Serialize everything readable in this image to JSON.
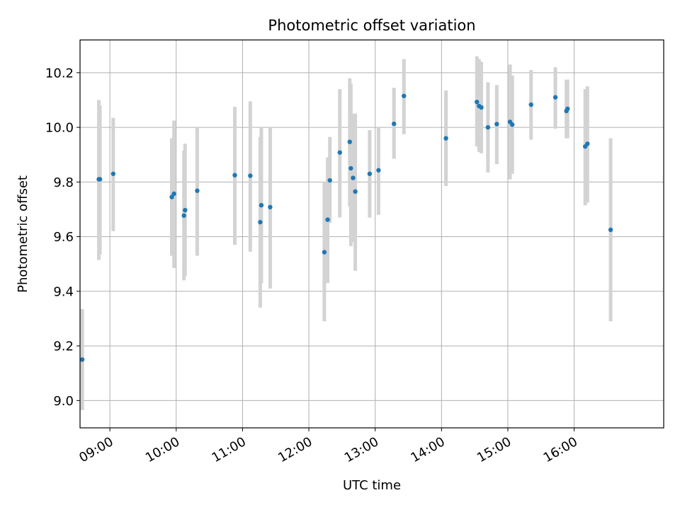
{
  "chart_data": {
    "type": "scatter",
    "title": "Photometric offset variation",
    "xlabel": "UTC time",
    "ylabel": "Photometric offset",
    "x_unit": "UTC time (HH:MM)",
    "xlim": [
      "08:33",
      "17:21"
    ],
    "ylim": [
      8.9,
      10.32
    ],
    "x_ticks": [
      "09:00",
      "10:00",
      "11:00",
      "12:00",
      "13:00",
      "14:00",
      "15:00",
      "16:00"
    ],
    "y_ticks": [
      9.0,
      9.2,
      9.4,
      9.6,
      9.8,
      10.0,
      10.2
    ],
    "y_tick_labels": [
      "9.0",
      "9.2",
      "9.4",
      "9.6",
      "9.8",
      "10.0",
      "10.2"
    ],
    "grid": true,
    "colors": {
      "point": "#1f77b4",
      "errorbar": "#d3d3d3",
      "grid": "#b0b0b0"
    },
    "series": [
      {
        "points": [
          {
            "x": "08:35",
            "y": 9.15,
            "lo": 8.965,
            "hi": 9.335
          },
          {
            "x": "08:50",
            "y": 9.81,
            "lo": 9.515,
            "hi": 10.1
          },
          {
            "x": "08:51",
            "y": 9.81,
            "lo": 9.535,
            "hi": 10.08
          },
          {
            "x": "09:03",
            "y": 9.83,
            "lo": 9.62,
            "hi": 10.035
          },
          {
            "x": "09:56",
            "y": 9.745,
            "lo": 9.53,
            "hi": 9.96
          },
          {
            "x": "09:58",
            "y": 9.757,
            "lo": 9.485,
            "hi": 10.025
          },
          {
            "x": "10:07",
            "y": 9.677,
            "lo": 9.44,
            "hi": 9.915
          },
          {
            "x": "10:08",
            "y": 9.697,
            "lo": 9.455,
            "hi": 9.94
          },
          {
            "x": "10:19",
            "y": 9.768,
            "lo": 9.53,
            "hi": 10.0
          },
          {
            "x": "10:53",
            "y": 9.825,
            "lo": 9.57,
            "hi": 10.075
          },
          {
            "x": "11:07",
            "y": 9.823,
            "lo": 9.545,
            "hi": 10.095
          },
          {
            "x": "11:16",
            "y": 9.653,
            "lo": 9.34,
            "hi": 9.965
          },
          {
            "x": "11:17",
            "y": 9.715,
            "lo": 9.43,
            "hi": 10.0
          },
          {
            "x": "11:25",
            "y": 9.708,
            "lo": 9.41,
            "hi": 10.0
          },
          {
            "x": "12:14",
            "y": 9.543,
            "lo": 9.29,
            "hi": 9.8
          },
          {
            "x": "12:17",
            "y": 9.662,
            "lo": 9.43,
            "hi": 9.89
          },
          {
            "x": "12:19",
            "y": 9.806,
            "lo": 9.65,
            "hi": 9.965
          },
          {
            "x": "12:28",
            "y": 9.908,
            "lo": 9.67,
            "hi": 10.14
          },
          {
            "x": "12:37",
            "y": 9.947,
            "lo": 9.71,
            "hi": 10.18
          },
          {
            "x": "12:38",
            "y": 9.85,
            "lo": 9.565,
            "hi": 10.16
          },
          {
            "x": "12:40",
            "y": 9.815,
            "lo": 9.58,
            "hi": 10.05
          },
          {
            "x": "12:42",
            "y": 9.765,
            "lo": 9.475,
            "hi": 10.05
          },
          {
            "x": "12:55",
            "y": 9.83,
            "lo": 9.67,
            "hi": 9.99
          },
          {
            "x": "13:03",
            "y": 9.843,
            "lo": 9.68,
            "hi": 10.0
          },
          {
            "x": "13:17",
            "y": 10.013,
            "lo": 9.885,
            "hi": 10.145
          },
          {
            "x": "13:26",
            "y": 10.115,
            "lo": 9.975,
            "hi": 10.25
          },
          {
            "x": "14:04",
            "y": 9.96,
            "lo": 9.785,
            "hi": 10.135
          },
          {
            "x": "14:32",
            "y": 10.093,
            "lo": 9.93,
            "hi": 10.26
          },
          {
            "x": "14:34",
            "y": 10.078,
            "lo": 9.91,
            "hi": 10.25
          },
          {
            "x": "14:36",
            "y": 10.073,
            "lo": 9.905,
            "hi": 10.24
          },
          {
            "x": "14:42",
            "y": 10.0,
            "lo": 9.835,
            "hi": 10.165
          },
          {
            "x": "14:50",
            "y": 10.012,
            "lo": 9.865,
            "hi": 10.155
          },
          {
            "x": "15:02",
            "y": 10.02,
            "lo": 9.81,
            "hi": 10.23
          },
          {
            "x": "15:04",
            "y": 10.01,
            "lo": 9.83,
            "hi": 10.19
          },
          {
            "x": "15:21",
            "y": 10.083,
            "lo": 9.955,
            "hi": 10.21
          },
          {
            "x": "15:43",
            "y": 10.11,
            "lo": 9.995,
            "hi": 10.22
          },
          {
            "x": "15:53",
            "y": 10.06,
            "lo": 9.96,
            "hi": 10.175
          },
          {
            "x": "15:54",
            "y": 10.068,
            "lo": 9.96,
            "hi": 10.175
          },
          {
            "x": "16:10",
            "y": 9.93,
            "lo": 9.715,
            "hi": 10.14
          },
          {
            "x": "16:12",
            "y": 9.94,
            "lo": 9.725,
            "hi": 10.15
          },
          {
            "x": "16:33",
            "y": 9.625,
            "lo": 9.29,
            "hi": 9.96
          }
        ]
      }
    ]
  }
}
